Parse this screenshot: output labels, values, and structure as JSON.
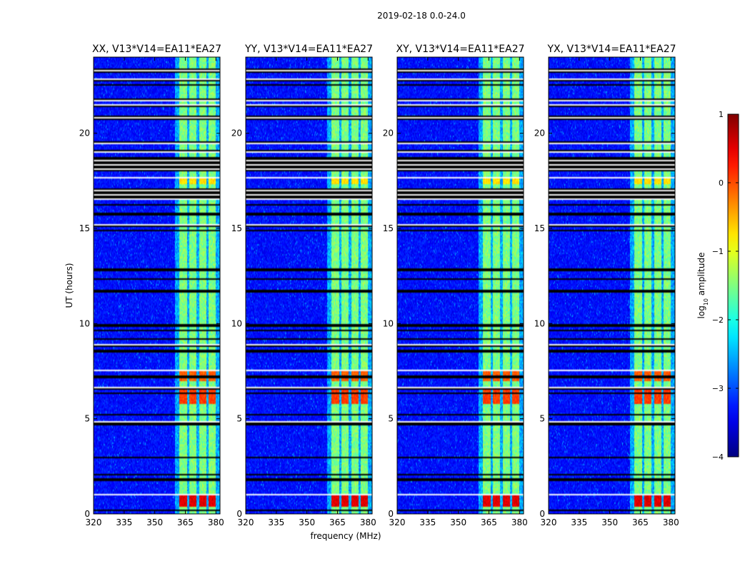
{
  "chart_data": {
    "type": "heatmap",
    "suptitle": "2019-02-18 0.0-24.0",
    "xlabel": "frequency (MHz)",
    "ylabel": "UT (hours)",
    "xlim": [
      320,
      382
    ],
    "ylim": [
      0,
      24
    ],
    "xticks": [
      320,
      335,
      350,
      365,
      380
    ],
    "xtick_labels": [
      "320",
      "335",
      "350",
      "365",
      "380"
    ],
    "yticks": [
      0,
      5,
      10,
      15,
      20
    ],
    "ytick_labels": [
      "0",
      "5",
      "10",
      "15",
      "20"
    ],
    "colormap": "jet",
    "panels": [
      {
        "title": "XX, V13*V14=EA11*EA27",
        "noise_seed": 11
      },
      {
        "title": "YY, V13*V14=EA11*EA27",
        "noise_seed": 23
      },
      {
        "title": "XY, V13*V14=EA11*EA27",
        "noise_seed": 37
      },
      {
        "title": "YX, V13*V14=EA11*EA27",
        "noise_seed": 53
      }
    ],
    "colorbar": {
      "label": "log",
      "label_sub": "10",
      "label_suffix": " amplitude",
      "range": [
        -4,
        1
      ],
      "ticks": [
        1,
        0,
        -1,
        -2,
        -3,
        -4
      ],
      "tick_labels": [
        "1",
        "0",
        "−1",
        "−2",
        "−3",
        "−4"
      ]
    },
    "flagged_time_bands_hours": [
      [
        23.15,
        23.4
      ],
      [
        22.75,
        22.85
      ],
      [
        22.5,
        22.6
      ],
      [
        21.7,
        21.8
      ],
      [
        21.4,
        21.5
      ],
      [
        20.7,
        20.95
      ],
      [
        19.4,
        19.6
      ],
      [
        19.0,
        19.1
      ],
      [
        18.0,
        18.75
      ],
      [
        17.6,
        17.7
      ],
      [
        16.5,
        17.1
      ],
      [
        16.2,
        16.3
      ],
      [
        15.7,
        15.8
      ],
      [
        15.05,
        15.2
      ],
      [
        14.85,
        14.95
      ],
      [
        12.75,
        12.9
      ],
      [
        12.3,
        12.4
      ],
      [
        11.65,
        11.8
      ],
      [
        9.85,
        9.95
      ],
      [
        9.6,
        9.7
      ],
      [
        9.15,
        9.2
      ],
      [
        8.8,
        8.9
      ],
      [
        8.5,
        8.6
      ],
      [
        7.5,
        7.6
      ],
      [
        7.15,
        7.25
      ],
      [
        6.55,
        6.65
      ],
      [
        6.3,
        6.35
      ],
      [
        5.2,
        5.25
      ],
      [
        4.65,
        4.85
      ],
      [
        2.9,
        3.0
      ],
      [
        2.0,
        2.1
      ],
      [
        1.75,
        1.85
      ],
      [
        0.95,
        1.05
      ],
      [
        0.15,
        0.25
      ]
    ],
    "bright_channel_blocks_mhz": [
      [
        362,
        366
      ],
      [
        367,
        370.5
      ],
      [
        372,
        375.5
      ],
      [
        376.5,
        380
      ]
    ],
    "hot_time_ranges_hours": [
      {
        "range": [
          0.4,
          1.0
        ],
        "level": 0.35
      },
      {
        "range": [
          5.8,
          6.5
        ],
        "level": -0.1
      },
      {
        "range": [
          7.0,
          7.5
        ],
        "level": -0.25
      },
      {
        "range": [
          17.3,
          17.6
        ],
        "level": -0.9
      }
    ]
  }
}
